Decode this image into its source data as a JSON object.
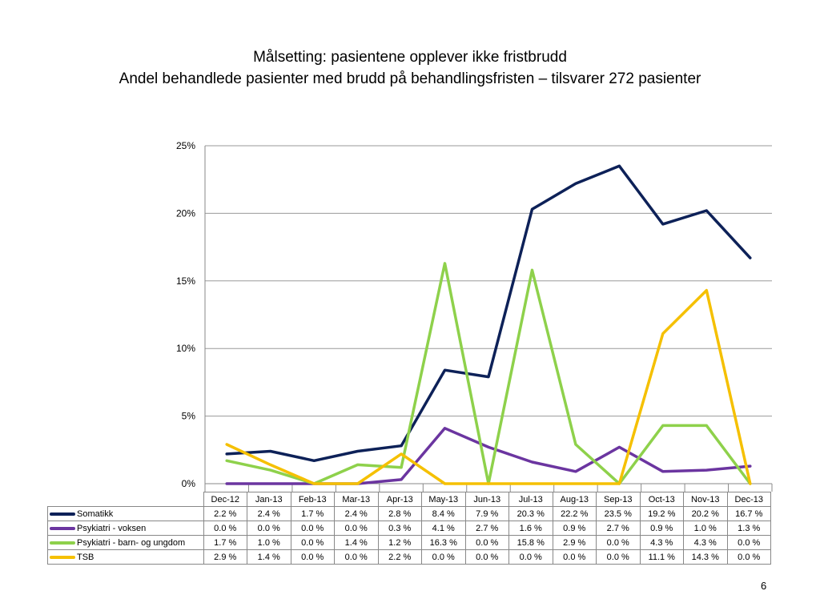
{
  "slide": {
    "title_line1": "Målsetting: pasientene opplever ikke fristbrudd",
    "title_line2": "Andel behandlede pasienter med brudd på behandlingsfristen – tilsvarer 272 pasienter",
    "page_number": "6"
  },
  "chart_data": {
    "type": "line",
    "title": "",
    "xlabel": "",
    "ylabel": "",
    "ylim": [
      0,
      25
    ],
    "yticks": [
      "0%",
      "5%",
      "10%",
      "15%",
      "20%",
      "25%"
    ],
    "grid": true,
    "legend": "data-table",
    "categories": [
      "Dec-12",
      "Jan-13",
      "Feb-13",
      "Mar-13",
      "Apr-13",
      "May-13",
      "Jun-13",
      "Jul-13",
      "Aug-13",
      "Sep-13",
      "Oct-13",
      "Nov-13",
      "Dec-13"
    ],
    "series": [
      {
        "name": "Somatikk",
        "color": "#0d2158",
        "values": [
          2.2,
          2.4,
          1.7,
          2.4,
          2.8,
          8.4,
          7.9,
          20.3,
          22.2,
          23.5,
          19.2,
          20.2,
          16.7
        ],
        "labels": [
          "2.2 %",
          "2.4 %",
          "1.7 %",
          "2.4 %",
          "2.8 %",
          "8.4 %",
          "7.9 %",
          "20.3 %",
          "22.2 %",
          "23.5 %",
          "19.2 %",
          "20.2 %",
          "16.7 %"
        ]
      },
      {
        "name": "Psykiatri - voksen",
        "color": "#6b35a0",
        "values": [
          0.0,
          0.0,
          0.0,
          0.0,
          0.3,
          4.1,
          2.7,
          1.6,
          0.9,
          2.7,
          0.9,
          1.0,
          1.3
        ],
        "labels": [
          "0.0 %",
          "0.0 %",
          "0.0 %",
          "0.0 %",
          "0.3 %",
          "4.1 %",
          "2.7 %",
          "1.6 %",
          "0.9 %",
          "2.7 %",
          "0.9 %",
          "1.0 %",
          "1.3 %"
        ]
      },
      {
        "name": "Psykiatri - barn- og ungdom",
        "color": "#8ed14b",
        "values": [
          1.7,
          1.0,
          0.0,
          1.4,
          1.2,
          16.3,
          0.0,
          15.8,
          2.9,
          0.0,
          4.3,
          4.3,
          0.0
        ],
        "labels": [
          "1.7 %",
          "1.0 %",
          "0.0 %",
          "1.4 %",
          "1.2 %",
          "16.3 %",
          "0.0 %",
          "15.8 %",
          "2.9 %",
          "0.0 %",
          "4.3 %",
          "4.3 %",
          "0.0 %"
        ]
      },
      {
        "name": "TSB",
        "color": "#f5c000",
        "values": [
          2.9,
          1.4,
          0.0,
          0.0,
          2.2,
          0.0,
          0.0,
          0.0,
          0.0,
          0.0,
          11.1,
          14.3,
          0.0
        ],
        "labels": [
          "2.9 %",
          "1.4 %",
          "0.0 %",
          "0.0 %",
          "2.2 %",
          "0.0 %",
          "0.0 %",
          "0.0 %",
          "0.0 %",
          "0.0 %",
          "11.1 %",
          "14.3 %",
          "0.0 %"
        ]
      }
    ]
  }
}
